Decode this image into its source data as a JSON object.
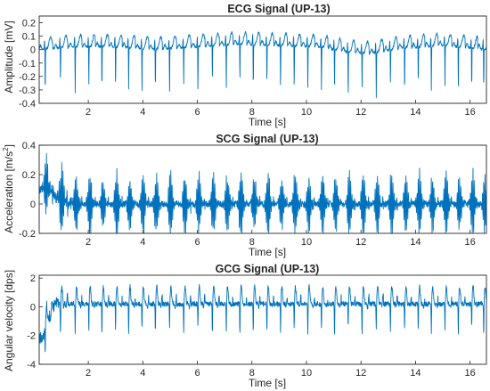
{
  "figure": {
    "line_color": "#0072bd",
    "axis_color": "#262626",
    "background": "#ffffff"
  },
  "chart_data": [
    {
      "type": "line",
      "title": "ECG Signal (UP-13)",
      "xlabel": "Time [s]",
      "ylabel": "Amplitude [mV]",
      "ylabel_superscript": "",
      "ylabel_tail": "",
      "xlim": [
        0.2,
        16.6
      ],
      "ylim": [
        -0.4,
        0.25
      ],
      "xticks": [
        2,
        4,
        6,
        8,
        10,
        12,
        14,
        16
      ],
      "xtick_labels": [
        "2",
        "4",
        "6",
        "8",
        "10",
        "12",
        "14",
        "16"
      ],
      "yticks": [
        -0.4,
        -0.3,
        -0.2,
        -0.1,
        0,
        0.1,
        0.2
      ],
      "ytick_labels": [
        "-0.4",
        "-0.3",
        "-0.2",
        "-0.1",
        "0",
        "0.1",
        "0.2"
      ],
      "grid": false,
      "series": [
        {
          "signal": "ecg",
          "beat_times": [
            0.42,
            0.98,
            1.52,
            2.02,
            2.5,
            3.0,
            3.48,
            3.97,
            4.46,
            4.98,
            5.5,
            6.02,
            6.55,
            7.06,
            7.56,
            8.05,
            8.55,
            9.05,
            9.55,
            10.05,
            10.55,
            11.03,
            11.53,
            12.04,
            12.56,
            13.08,
            13.6,
            14.1,
            14.58,
            15.08,
            15.57,
            16.06,
            16.5
          ],
          "baseline_t": [
            0.2,
            1.5,
            3.0,
            4.5,
            6.0,
            7.5,
            9.0,
            10.5,
            11.5,
            12.3,
            13.5,
            15.0,
            16.6
          ],
          "baseline_v": [
            0.0,
            0.02,
            0.02,
            0.0,
            0.02,
            0.04,
            0.03,
            0.02,
            -0.02,
            -0.03,
            0.01,
            0.03,
            0.0
          ]
        }
      ]
    },
    {
      "type": "line",
      "title": "SCG Signal (UP-13)",
      "xlabel": "Time [s]",
      "ylabel": "Acceleration [m/s",
      "ylabel_superscript": "2",
      "ylabel_tail": "]",
      "xlim": [
        0.2,
        16.6
      ],
      "ylim": [
        -0.2,
        0.4
      ],
      "xticks": [
        2,
        4,
        6,
        8,
        10,
        12,
        14,
        16
      ],
      "xtick_labels": [
        "2",
        "4",
        "6",
        "8",
        "10",
        "12",
        "14",
        "16"
      ],
      "yticks": [
        -0.2,
        0,
        0.2,
        0.4
      ],
      "ytick_labels": [
        "-0.2",
        "0",
        "0.2",
        "0.4"
      ],
      "grid": false,
      "series": [
        {
          "signal": "scg",
          "beat_times": [
            0.42,
            0.98,
            1.52,
            2.02,
            2.5,
            3.0,
            3.48,
            3.97,
            4.46,
            4.98,
            5.5,
            6.02,
            6.55,
            7.06,
            7.56,
            8.05,
            8.55,
            9.05,
            9.55,
            10.05,
            10.55,
            11.03,
            11.53,
            12.04,
            12.56,
            13.08,
            13.6,
            14.1,
            14.58,
            15.08,
            15.57,
            16.06,
            16.5
          ],
          "baseline_t": [
            0.2,
            0.5,
            0.9,
            1.4,
            16.6
          ],
          "baseline_v": [
            0.1,
            0.12,
            0.04,
            0.0,
            0.0
          ]
        }
      ]
    },
    {
      "type": "line",
      "title": "GCG Signal (UP-13)",
      "xlabel": "Time [s]",
      "ylabel": "Angular velocity [dps]",
      "ylabel_superscript": "",
      "ylabel_tail": "",
      "xlim": [
        0.2,
        16.6
      ],
      "ylim": [
        -4,
        2.2
      ],
      "xticks": [
        2,
        4,
        6,
        8,
        10,
        12,
        14,
        16
      ],
      "xtick_labels": [
        "2",
        "4",
        "6",
        "8",
        "10",
        "12",
        "14",
        "16"
      ],
      "yticks": [
        -4,
        -2,
        0,
        2
      ],
      "ytick_labels": [
        "-4",
        "-2",
        "0",
        "2"
      ],
      "grid": false,
      "series": [
        {
          "signal": "gcg",
          "beat_times": [
            0.42,
            0.98,
            1.52,
            2.02,
            2.5,
            3.0,
            3.48,
            3.97,
            4.46,
            4.98,
            5.5,
            6.02,
            6.55,
            7.06,
            7.56,
            8.05,
            8.55,
            9.05,
            9.55,
            10.05,
            10.55,
            11.03,
            11.53,
            12.04,
            12.56,
            13.08,
            13.6,
            14.1,
            14.58,
            15.08,
            15.57,
            16.06,
            16.5
          ],
          "baseline_t": [
            0.2,
            0.3,
            0.5,
            0.8,
            1.1,
            16.6
          ],
          "baseline_v": [
            -2.0,
            -2.3,
            -1.0,
            0.3,
            0.2,
            0.2
          ]
        }
      ]
    }
  ]
}
